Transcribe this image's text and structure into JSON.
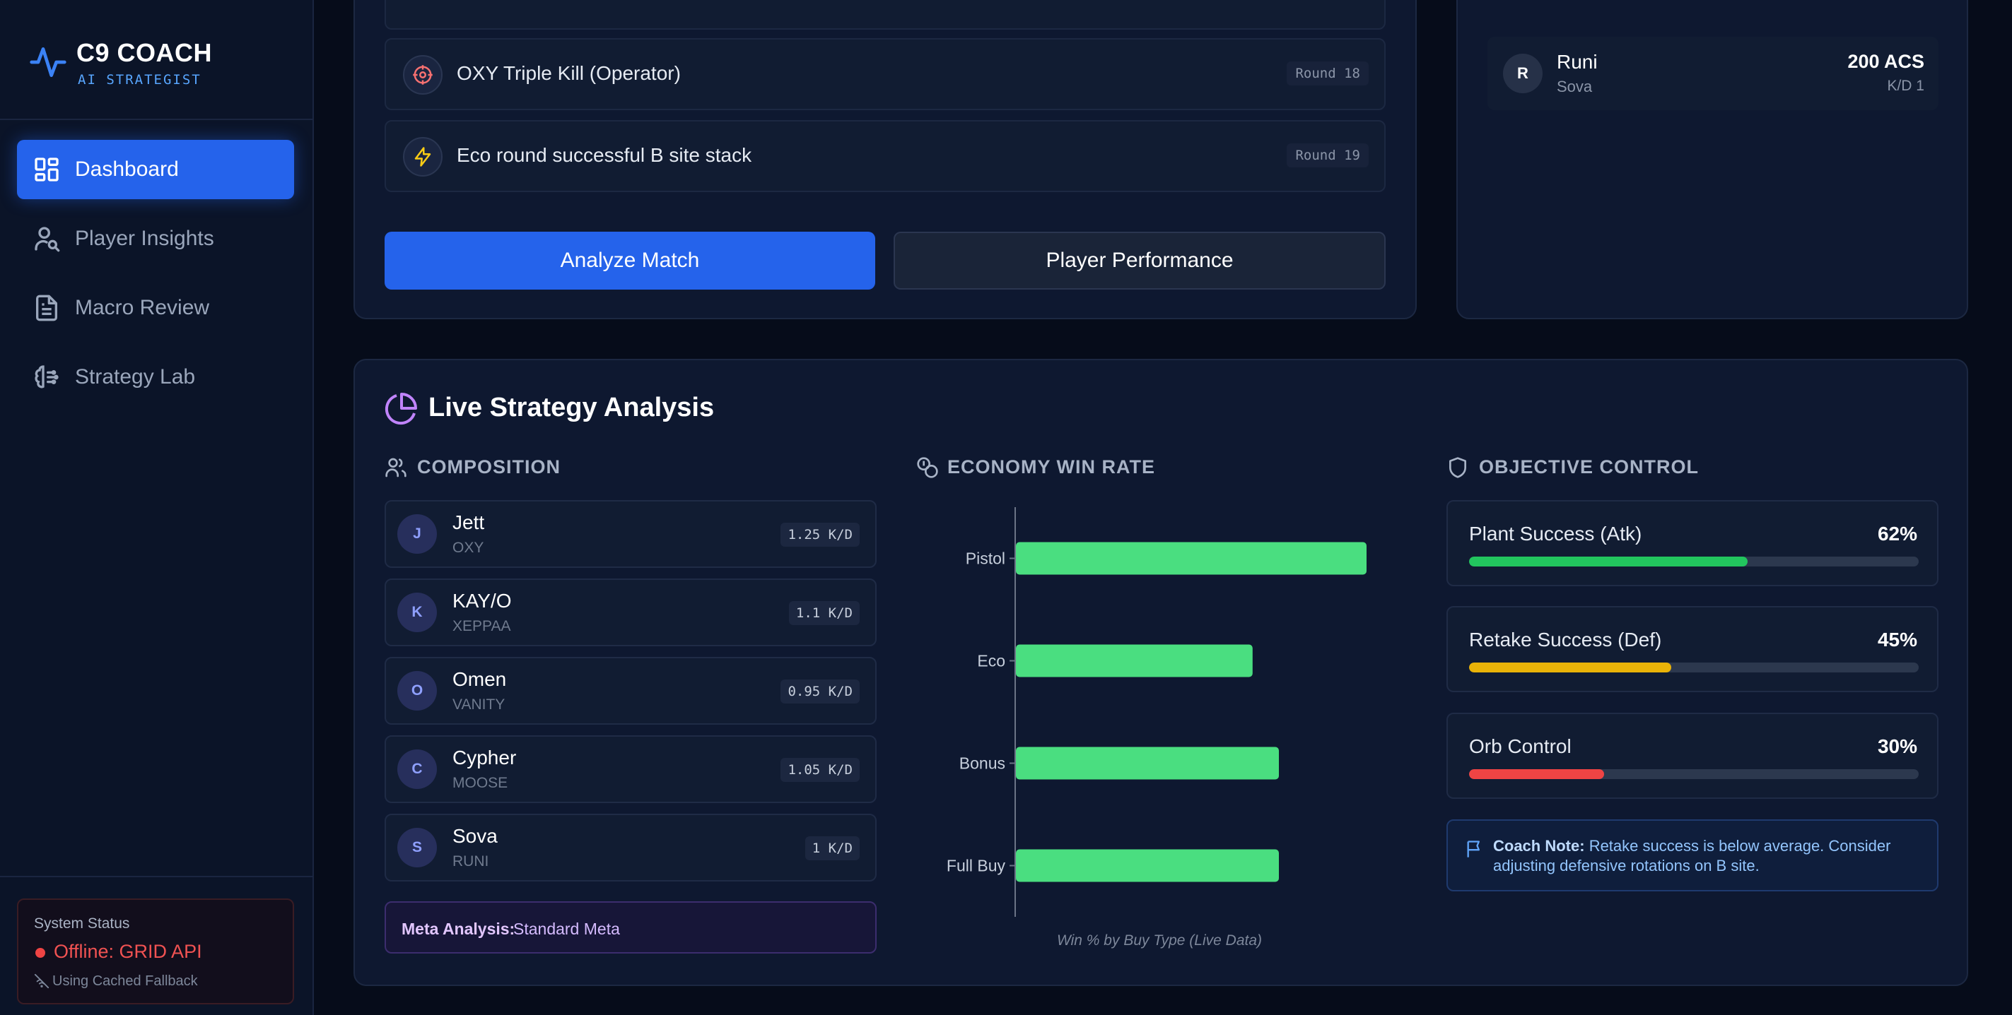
{
  "brand": {
    "title": "C9 COACH",
    "subtitle": "AI STRATEGIST"
  },
  "sidebar": {
    "items": [
      {
        "label": "Dashboard",
        "icon": "grid-icon",
        "active": true
      },
      {
        "label": "Player Insights",
        "icon": "user-search-icon",
        "active": false
      },
      {
        "label": "Macro Review",
        "icon": "document-icon",
        "active": false
      },
      {
        "label": "Strategy Lab",
        "icon": "brain-icon",
        "active": false
      }
    ],
    "status": {
      "title": "System Status",
      "value": "Offline: GRID API",
      "fallback": "Using Cached Fallback"
    }
  },
  "events": [
    {
      "label": "OXY Triple Kill (Operator)",
      "round": "Round 18",
      "icon": "crosshair-icon"
    },
    {
      "label": "Eco round successful B site stack",
      "round": "Round 19",
      "icon": "lightning-icon"
    }
  ],
  "actions": {
    "analyze": "Analyze Match",
    "performance": "Player Performance"
  },
  "top_player": {
    "initial": "R",
    "name": "Runi",
    "agent": "Sova",
    "acs": "200 ACS",
    "kd": "K/D 1"
  },
  "strategy": {
    "title": "Live Strategy Analysis",
    "composition": {
      "heading": "COMPOSITION",
      "rows": [
        {
          "initial": "J",
          "agent": "Jett",
          "player": "OXY",
          "kd": "1.25 K/D"
        },
        {
          "initial": "K",
          "agent": "KAY/O",
          "player": "XEPPAA",
          "kd": "1.1 K/D"
        },
        {
          "initial": "O",
          "agent": "Omen",
          "player": "VANITY",
          "kd": "0.95 K/D"
        },
        {
          "initial": "C",
          "agent": "Cypher",
          "player": "MOOSE",
          "kd": "1.05 K/D"
        },
        {
          "initial": "S",
          "agent": "Sova",
          "player": "RUNI",
          "kd": "1 K/D"
        }
      ],
      "meta_label": "Meta Analysis:",
      "meta_value": "Standard Meta"
    },
    "economy": {
      "heading": "ECONOMY WIN RATE"
    },
    "objective": {
      "heading": "OBJECTIVE CONTROL",
      "rows": [
        {
          "label": "Plant Success (Atk)",
          "value": "62%",
          "fraction": 0.62,
          "color": "#22c55e"
        },
        {
          "label": "Retake Success (Def)",
          "value": "45%",
          "fraction": 0.45,
          "color": "#eab308"
        },
        {
          "label": "Orb Control",
          "value": "30%",
          "fraction": 0.3,
          "color": "#ef4444"
        }
      ],
      "note_label": "Coach Note:",
      "note_text": "Retake success is below average. Consider adjusting defensive rotations on B site."
    }
  },
  "chart_data": {
    "type": "bar",
    "orientation": "horizontal",
    "categories": [
      "Pistol",
      "Eco",
      "Bonus",
      "Full Buy"
    ],
    "values": [
      80,
      54,
      60,
      60
    ],
    "xlim": [
      0,
      100
    ],
    "title": "",
    "xlabel": "Win % by Buy Type (Live Data)",
    "ylabel": "",
    "color": "#4ade80",
    "grid": false
  }
}
